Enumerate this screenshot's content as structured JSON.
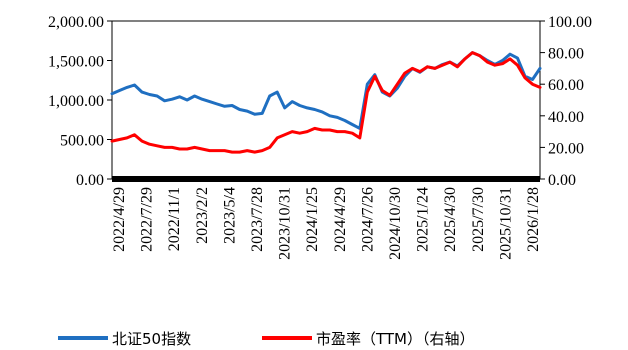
{
  "chart_data": {
    "type": "line",
    "title": "",
    "x_labels": [
      "2022/4/29",
      "2022/7/29",
      "2022/11/1",
      "2023/2/2",
      "2023/5/4",
      "2023/7/28",
      "2023/10/31",
      "2024/1/25",
      "2024/4/29",
      "2024/7/26",
      "2024/10/30",
      "2025/1/24",
      "2025/4/30",
      "2025/7/30",
      "2025/10/31",
      "2026/1/28"
    ],
    "left_axis": {
      "ylim": [
        0,
        2000
      ],
      "ticks": [
        "0.00",
        "500.00",
        "1,000.00",
        "1,500.00",
        "2,000.00"
      ]
    },
    "right_axis": {
      "ylim": [
        0,
        100
      ],
      "ticks": [
        "0.00",
        "20.00",
        "40.00",
        "60.00",
        "80.00",
        "100.00"
      ]
    },
    "series": [
      {
        "name": "北证50指数",
        "axis": "left",
        "color": "#1f6fc1",
        "values": [
          1080,
          1120,
          1160,
          1190,
          1100,
          1070,
          1050,
          990,
          1010,
          1040,
          1000,
          1050,
          1010,
          980,
          950,
          920,
          930,
          880,
          860,
          820,
          830,
          1050,
          1100,
          900,
          980,
          930,
          900,
          880,
          850,
          800,
          780,
          740,
          690,
          640,
          1200,
          1320,
          1100,
          1050,
          1150,
          1300,
          1400,
          1350,
          1420,
          1400,
          1450,
          1480,
          1430,
          1520,
          1600,
          1560,
          1500,
          1450,
          1500,
          1580,
          1530,
          1300,
          1260,
          1400
        ]
      },
      {
        "name": "市盈率（TTM）（右轴）",
        "axis": "right",
        "color": "#ff0000",
        "values": [
          24,
          25,
          26,
          28,
          24,
          22,
          21,
          20,
          20,
          19,
          19,
          20,
          19,
          18,
          18,
          18,
          17,
          17,
          18,
          17,
          18,
          20,
          26,
          28,
          30,
          29,
          30,
          32,
          31,
          31,
          30,
          30,
          29,
          26,
          55,
          65,
          56,
          53,
          60,
          67,
          70,
          68,
          71,
          70,
          72,
          74,
          71,
          76,
          80,
          78,
          74,
          72,
          73,
          76,
          72,
          64,
          60,
          58
        ]
      }
    ],
    "legend_position": "bottom",
    "grid": false
  }
}
